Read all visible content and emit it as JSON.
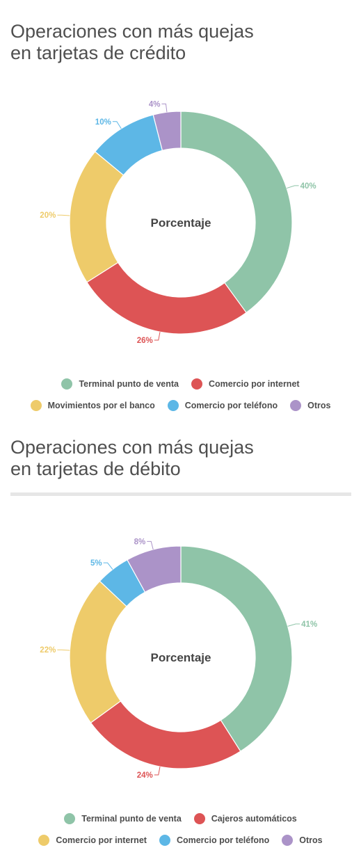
{
  "colors": {
    "green": "#8fc4a8",
    "red": "#dd5455",
    "yellow": "#eecb6a",
    "blue": "#5db7e6",
    "purple": "#ab93c8"
  },
  "chart_data": [
    {
      "type": "pie",
      "donut": true,
      "title": "Operaciones con más quejas en tarjetas de crédito",
      "title_lines": [
        "Operaciones con más quejas",
        "en tarjetas de crédito"
      ],
      "center_label": "Porcentaje",
      "unit": "%",
      "categories": [
        "Terminal punto de venta",
        "Comercio por internet",
        "Movimientos por el banco",
        "Comercio por teléfono",
        "Otros"
      ],
      "values": [
        40,
        26,
        20,
        10,
        4
      ],
      "colors": [
        "#8fc4a8",
        "#dd5455",
        "#eecb6a",
        "#5db7e6",
        "#ab93c8"
      ],
      "legend_rows": [
        [
          0,
          1
        ],
        [
          2,
          3,
          4
        ]
      ]
    },
    {
      "type": "pie",
      "donut": true,
      "title": "Operaciones con más quejas en tarjetas de débito",
      "title_lines": [
        "Operaciones con más quejas",
        "en tarjetas de débito"
      ],
      "center_label": "Porcentaje",
      "unit": "%",
      "categories": [
        "Terminal punto de venta",
        "Cajeros automáticos",
        "Comercio por internet",
        "Comercio por teléfono",
        "Otros"
      ],
      "values": [
        41,
        24,
        22,
        5,
        8
      ],
      "colors": [
        "#8fc4a8",
        "#dd5455",
        "#eecb6a",
        "#5db7e6",
        "#ab93c8"
      ],
      "legend_rows": [
        [
          0,
          1
        ],
        [
          2,
          3,
          4
        ]
      ]
    }
  ]
}
